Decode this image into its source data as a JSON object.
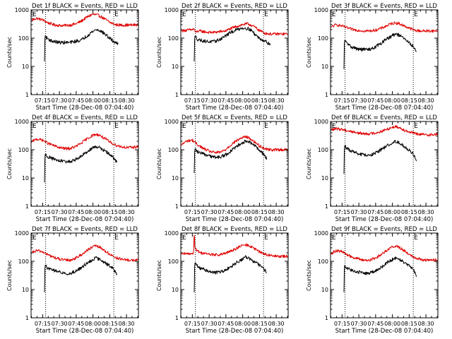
{
  "colors": {
    "events": "#000000",
    "lld": "#e00000",
    "axis": "#000000",
    "background": "#ffffff"
  },
  "shared": {
    "xlabel": "Start Time (28-Dec-08 07:04:40)",
    "ylabel": "Counts/sec",
    "x_tick_labels": [
      "07:15",
      "07:30",
      "07:45",
      "08:00",
      "08:15",
      "08:30"
    ],
    "x_tick_minutes": [
      10.33,
      25.33,
      40.33,
      55.33,
      70.33,
      85.33
    ],
    "y_tick_labels": [
      "1",
      "10",
      "100",
      "1000"
    ],
    "y_tick_values": [
      1,
      10,
      100,
      1000
    ],
    "ylim": [
      1,
      1000
    ],
    "xlim_minutes": [
      0,
      96
    ],
    "y_scale": "log",
    "edge_marker_label": "E",
    "dotted_vlines_minutes": [
      13,
      74
    ]
  },
  "chart_data": [
    {
      "type": "line",
      "title": "Det 1f BLACK = Events, RED = LLD",
      "series": [
        {
          "name": "Events",
          "color": "#000000",
          "x": [
            12,
            12.5,
            14,
            18,
            25,
            35,
            45,
            50,
            55,
            58,
            61,
            65,
            70,
            74,
            76,
            78
          ],
          "y": [
            15,
            125,
            100,
            80,
            70,
            70,
            85,
            120,
            170,
            200,
            190,
            150,
            100,
            75,
            70,
            60
          ]
        },
        {
          "name": "LLD",
          "color": "#e00000",
          "x": [
            0,
            5,
            10,
            15,
            20,
            25,
            30,
            35,
            40,
            45,
            50,
            55,
            60,
            65,
            70,
            75,
            80,
            85,
            90,
            96
          ],
          "y": [
            430,
            500,
            450,
            350,
            300,
            280,
            280,
            290,
            320,
            400,
            550,
            700,
            650,
            500,
            370,
            300,
            290,
            290,
            290,
            300
          ]
        }
      ]
    },
    {
      "type": "line",
      "title": "Det 2f BLACK = Events, RED = LLD",
      "series": [
        {
          "name": "Events",
          "color": "#000000",
          "x": [
            12,
            12.5,
            15,
            20,
            25,
            30,
            35,
            40,
            45,
            50,
            55,
            60,
            63,
            66,
            70,
            75,
            80
          ],
          "y": [
            15,
            120,
            90,
            80,
            75,
            75,
            90,
            120,
            160,
            200,
            230,
            220,
            190,
            140,
            100,
            80,
            60
          ]
        },
        {
          "name": "LLD",
          "color": "#e00000",
          "x": [
            0,
            10,
            12,
            13,
            16,
            20,
            25,
            30,
            40,
            45,
            50,
            55,
            60,
            62,
            65,
            70,
            75,
            80,
            85,
            90,
            96
          ],
          "y": [
            180,
            200,
            210,
            160,
            180,
            170,
            160,
            160,
            180,
            220,
            260,
            300,
            320,
            300,
            260,
            190,
            150,
            140,
            140,
            140,
            140
          ]
        }
      ]
    },
    {
      "type": "line",
      "title": "Det 3f BLACK = Events, RED = LLD",
      "series": [
        {
          "name": "Events",
          "color": "#000000",
          "x": [
            12,
            12.5,
            14,
            18,
            25,
            30,
            35,
            40,
            45,
            50,
            55,
            58,
            61,
            65,
            70,
            74,
            77
          ],
          "y": [
            8,
            85,
            70,
            50,
            40,
            40,
            40,
            48,
            65,
            90,
            120,
            140,
            130,
            100,
            70,
            50,
            30
          ]
        },
        {
          "name": "LLD",
          "color": "#e00000",
          "x": [
            0,
            5,
            10,
            15,
            20,
            25,
            30,
            35,
            40,
            45,
            50,
            55,
            58,
            61,
            65,
            70,
            75,
            80,
            85,
            90,
            96
          ],
          "y": [
            240,
            300,
            270,
            230,
            200,
            190,
            180,
            180,
            190,
            220,
            270,
            330,
            350,
            330,
            280,
            230,
            190,
            180,
            180,
            180,
            180
          ]
        }
      ]
    },
    {
      "type": "line",
      "title": "Det 4f BLACK = Events, RED = LLD",
      "series": [
        {
          "name": "Events",
          "color": "#000000",
          "x": [
            12,
            12.5,
            14,
            18,
            25,
            30,
            35,
            40,
            45,
            50,
            55,
            58,
            61,
            65,
            70,
            74,
            77
          ],
          "y": [
            7,
            70,
            60,
            50,
            40,
            38,
            38,
            45,
            60,
            85,
            115,
            130,
            120,
            95,
            70,
            50,
            35
          ]
        },
        {
          "name": "LLD",
          "color": "#e00000",
          "x": [
            0,
            5,
            10,
            15,
            20,
            25,
            30,
            35,
            40,
            45,
            50,
            55,
            58,
            61,
            65,
            70,
            75,
            80,
            85,
            90,
            96
          ],
          "y": [
            180,
            240,
            220,
            170,
            140,
            120,
            110,
            110,
            130,
            170,
            240,
            320,
            350,
            330,
            260,
            190,
            150,
            130,
            120,
            120,
            130
          ]
        }
      ]
    },
    {
      "type": "line",
      "title": "Det 5f BLACK = Events, RED = LLD",
      "series": [
        {
          "name": "Events",
          "color": "#000000",
          "x": [
            12,
            12.5,
            14,
            18,
            25,
            30,
            35,
            40,
            45,
            50,
            55,
            58,
            61,
            65,
            70,
            74,
            77
          ],
          "y": [
            15,
            110,
            90,
            75,
            60,
            55,
            55,
            65,
            90,
            130,
            175,
            200,
            185,
            145,
            100,
            70,
            45
          ]
        },
        {
          "name": "LLD",
          "color": "#e00000",
          "x": [
            0,
            5,
            10,
            15,
            20,
            25,
            30,
            35,
            40,
            45,
            50,
            55,
            58,
            61,
            65,
            70,
            75,
            80,
            85,
            90,
            96
          ],
          "y": [
            140,
            200,
            220,
            150,
            110,
            90,
            80,
            80,
            100,
            150,
            210,
            270,
            290,
            260,
            200,
            140,
            110,
            100,
            100,
            100,
            100
          ]
        }
      ]
    },
    {
      "type": "line",
      "title": "Det 6f BLACK = Events, RED = LLD",
      "series": [
        {
          "name": "Events",
          "color": "#000000",
          "x": [
            12,
            12.5,
            14,
            18,
            25,
            30,
            35,
            40,
            45,
            50,
            55,
            58,
            61,
            65,
            70,
            74,
            77
          ],
          "y": [
            14,
            140,
            120,
            90,
            70,
            65,
            65,
            75,
            100,
            130,
            175,
            200,
            185,
            140,
            100,
            70,
            35
          ]
        },
        {
          "name": "LLD",
          "color": "#e00000",
          "x": [
            0,
            5,
            10,
            15,
            20,
            25,
            30,
            35,
            40,
            45,
            50,
            55,
            58,
            61,
            65,
            70,
            75,
            80,
            85,
            90,
            96
          ],
          "y": [
            500,
            550,
            530,
            470,
            430,
            390,
            370,
            370,
            390,
            440,
            520,
            620,
            660,
            620,
            520,
            430,
            380,
            350,
            340,
            340,
            350
          ]
        }
      ]
    },
    {
      "type": "line",
      "title": "Det 7f BLACK = Events, RED = LLD",
      "series": [
        {
          "name": "Events",
          "color": "#000000",
          "x": [
            12,
            12.5,
            14,
            18,
            25,
            30,
            35,
            40,
            45,
            50,
            55,
            58,
            61,
            65,
            70,
            74,
            77
          ],
          "y": [
            8,
            75,
            60,
            50,
            42,
            38,
            38,
            45,
            60,
            85,
            115,
            130,
            120,
            95,
            70,
            50,
            30
          ]
        },
        {
          "name": "LLD",
          "color": "#e00000",
          "x": [
            0,
            5,
            10,
            15,
            20,
            25,
            30,
            35,
            40,
            45,
            50,
            55,
            58,
            61,
            65,
            70,
            75,
            80,
            85,
            90,
            96
          ],
          "y": [
            190,
            240,
            220,
            170,
            140,
            120,
            110,
            110,
            130,
            170,
            240,
            320,
            350,
            320,
            250,
            180,
            140,
            120,
            110,
            110,
            110
          ]
        }
      ]
    },
    {
      "type": "line",
      "title": "Det 8f BLACK = Events, RED = LLD",
      "series": [
        {
          "name": "Events",
          "color": "#000000",
          "x": [
            12,
            12.5,
            14,
            18,
            25,
            30,
            35,
            40,
            45,
            50,
            55,
            58,
            61,
            65,
            70,
            74,
            77
          ],
          "y": [
            8,
            90,
            70,
            55,
            45,
            40,
            40,
            48,
            65,
            90,
            120,
            140,
            130,
            100,
            75,
            55,
            40
          ]
        },
        {
          "name": "LLD",
          "color": "#e00000",
          "x": [
            0,
            10,
            11.5,
            12,
            12.5,
            14,
            18,
            25,
            30,
            35,
            40,
            45,
            50,
            55,
            58,
            61,
            65,
            70,
            75,
            80,
            85,
            90,
            96
          ],
          "y": [
            180,
            190,
            200,
            1000,
            350,
            240,
            200,
            180,
            170,
            170,
            190,
            230,
            290,
            360,
            380,
            360,
            290,
            220,
            180,
            160,
            150,
            150,
            150
          ]
        }
      ]
    },
    {
      "type": "line",
      "title": "Det 9f BLACK = Events, RED = LLD",
      "series": [
        {
          "name": "Events",
          "color": "#000000",
          "x": [
            12,
            12.5,
            14,
            18,
            25,
            30,
            35,
            40,
            45,
            50,
            55,
            58,
            61,
            65,
            70,
            74,
            77
          ],
          "y": [
            8,
            75,
            60,
            50,
            42,
            38,
            38,
            45,
            60,
            85,
            115,
            130,
            120,
            95,
            70,
            50,
            25
          ]
        },
        {
          "name": "LLD",
          "color": "#e00000",
          "x": [
            0,
            5,
            10,
            15,
            20,
            25,
            30,
            35,
            40,
            45,
            50,
            55,
            58,
            61,
            65,
            70,
            75,
            80,
            85,
            90,
            96
          ],
          "y": [
            180,
            240,
            220,
            170,
            140,
            120,
            110,
            110,
            130,
            170,
            240,
            320,
            350,
            320,
            250,
            180,
            140,
            120,
            110,
            110,
            110
          ]
        }
      ]
    }
  ]
}
